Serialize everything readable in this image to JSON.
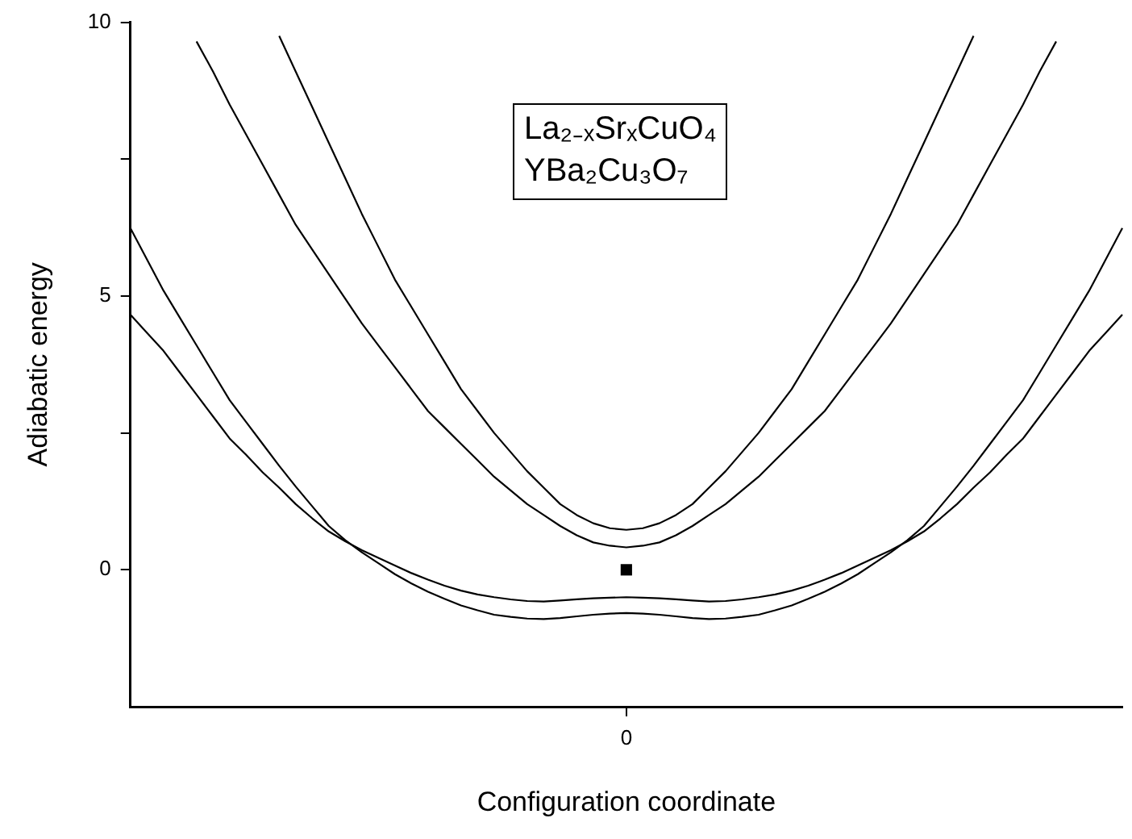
{
  "chart_data": {
    "type": "line",
    "xlabel": "Configuration coordinate",
    "ylabel": "Adiabatic energy",
    "annotations": [
      "La₂₋ₓSrₓCuO₄",
      "YBa₂Cu₃O₇"
    ],
    "categories": [
      null,
      null,
      null,
      null,
      null,
      null,
      null,
      null,
      null,
      null,
      null,
      null,
      null,
      null,
      null,
      null,
      null,
      null,
      null,
      null,
      null,
      null,
      null,
      null,
      null,
      null,
      null,
      null,
      null,
      null,
      "0",
      null,
      null,
      null,
      null,
      null,
      null,
      null,
      null,
      null,
      null,
      null,
      null,
      null,
      null,
      null,
      null,
      null,
      null,
      null,
      null,
      null,
      null,
      null,
      null,
      null,
      null,
      null,
      null,
      null,
      null
    ],
    "ylim": [
      -2.5,
      10
    ],
    "yticks": [
      0,
      {
        "value": 2.5,
        "label": null
      },
      5,
      {
        "value": 7.5,
        "label": null
      },
      10
    ],
    "grid": false,
    "series": [
      {
        "color": "#000000",
        "values": [
          null,
          null,
          null,
          null,
          null,
          null,
          null,
          null,
          null,
          9.75,
          9.1,
          8.45,
          7.8,
          7.15,
          6.5,
          5.9,
          5.3,
          4.8,
          4.3,
          3.8,
          3.3,
          2.9,
          2.5,
          2.15,
          1.8,
          1.5,
          1.2,
          1.0,
          0.85,
          0.76,
          0.73,
          0.76,
          0.85,
          1.0,
          1.2,
          1.5,
          1.8,
          2.15,
          2.5,
          2.9,
          3.3,
          3.8,
          4.3,
          4.8,
          5.3,
          5.9,
          6.5,
          7.15,
          7.8,
          8.45,
          9.1,
          9.75,
          null,
          null,
          null,
          null,
          null,
          null,
          null,
          null,
          null
        ]
      },
      {
        "color": "#000000",
        "values": [
          null,
          null,
          null,
          null,
          9.65,
          9.1,
          8.5,
          7.95,
          7.4,
          6.85,
          6.3,
          5.85,
          5.4,
          4.95,
          4.5,
          4.1,
          3.7,
          3.3,
          2.9,
          2.6,
          2.3,
          2.0,
          1.7,
          1.45,
          1.2,
          1.0,
          0.8,
          0.63,
          0.5,
          0.44,
          0.41,
          0.44,
          0.5,
          0.63,
          0.8,
          1.0,
          1.2,
          1.45,
          1.7,
          2.0,
          2.3,
          2.6,
          2.9,
          3.3,
          3.7,
          4.1,
          4.5,
          4.95,
          5.4,
          5.85,
          6.3,
          6.85,
          7.4,
          7.95,
          8.5,
          9.1,
          9.65,
          null,
          null,
          null,
          null
        ]
      },
      {
        "color": "#000000",
        "values": [
          4.66,
          4.33,
          4.0,
          3.6,
          3.2,
          2.8,
          2.4,
          2.1,
          1.78,
          1.5,
          1.2,
          0.94,
          0.7,
          0.52,
          0.36,
          0.22,
          0.08,
          -0.06,
          -0.18,
          -0.29,
          -0.38,
          -0.45,
          -0.5,
          -0.54,
          -0.57,
          -0.58,
          -0.56,
          -0.54,
          -0.52,
          -0.51,
          -0.5,
          -0.51,
          -0.52,
          -0.54,
          -0.56,
          -0.58,
          -0.57,
          -0.54,
          -0.5,
          -0.45,
          -0.38,
          -0.29,
          -0.18,
          -0.06,
          0.08,
          0.22,
          0.36,
          0.52,
          0.7,
          0.94,
          1.2,
          1.5,
          1.78,
          2.1,
          2.4,
          2.8,
          3.2,
          3.6,
          4.0,
          4.33,
          4.66
        ]
      },
      {
        "color": "#000000",
        "values": [
          6.24,
          5.67,
          5.1,
          4.6,
          4.1,
          3.6,
          3.1,
          2.7,
          2.3,
          1.9,
          1.52,
          1.16,
          0.8,
          0.54,
          0.32,
          0.12,
          -0.08,
          -0.25,
          -0.4,
          -0.53,
          -0.65,
          -0.74,
          -0.82,
          -0.86,
          -0.89,
          -0.9,
          -0.88,
          -0.85,
          -0.82,
          -0.8,
          -0.79,
          -0.8,
          -0.82,
          -0.85,
          -0.88,
          -0.9,
          -0.89,
          -0.86,
          -0.82,
          -0.74,
          -0.65,
          -0.53,
          -0.4,
          -0.25,
          -0.08,
          0.12,
          0.32,
          0.54,
          0.8,
          1.16,
          1.52,
          1.9,
          2.3,
          2.7,
          3.1,
          3.6,
          4.1,
          4.6,
          5.1,
          5.67,
          6.24
        ]
      },
      {
        "type": "scatter",
        "color": "#000000",
        "marker": "square",
        "x": [
          "0"
        ],
        "values": [
          0
        ]
      }
    ]
  }
}
